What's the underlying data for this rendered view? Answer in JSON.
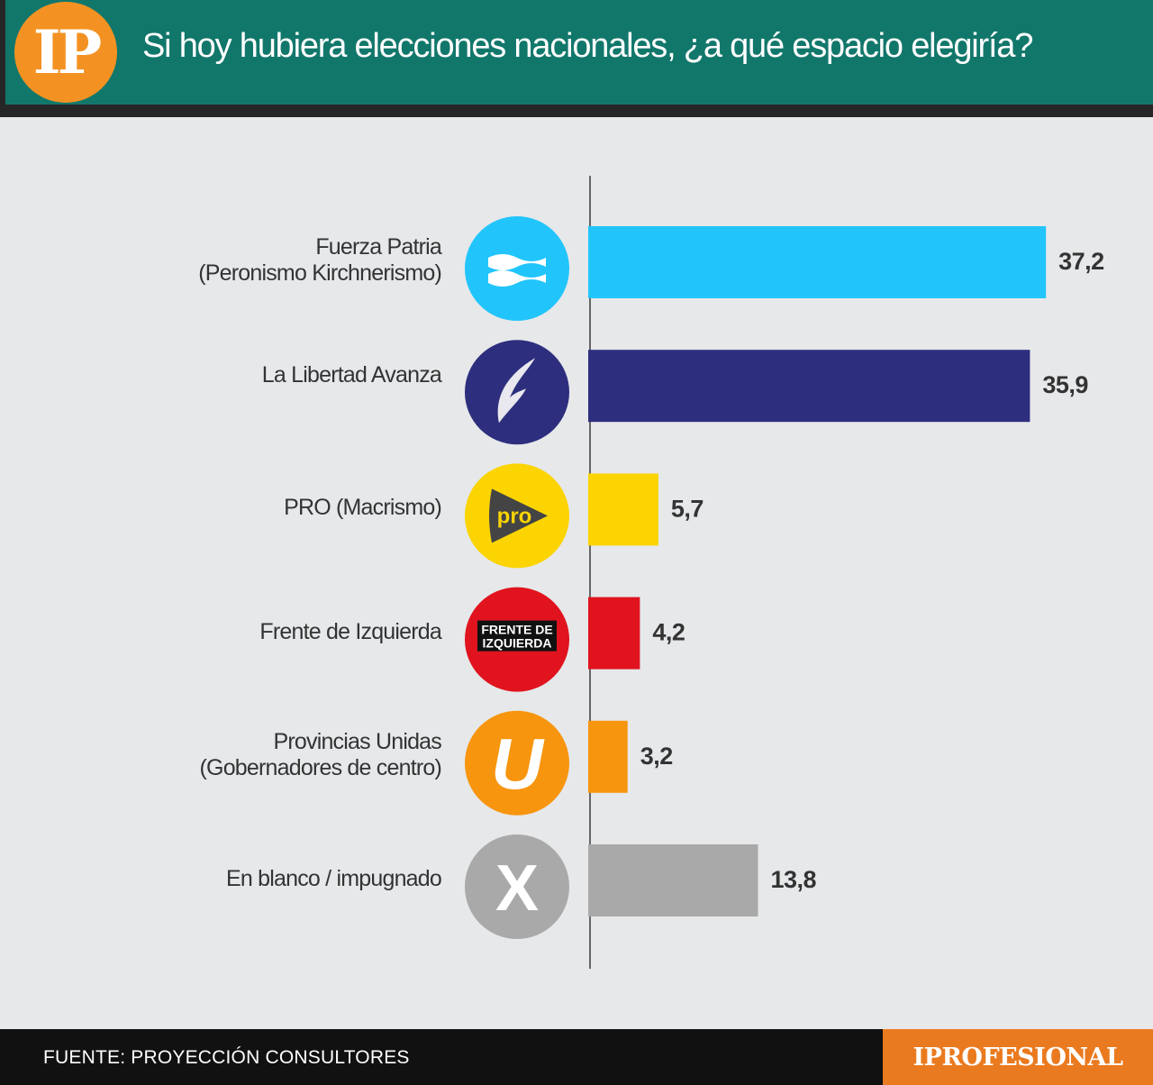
{
  "header": {
    "logo_text": "IP",
    "title": "Si hoy hubiera elecciones nacionales, ¿a qué espacio elegiría?"
  },
  "chart_data": {
    "type": "bar",
    "orientation": "horizontal",
    "title": "Si hoy hubiera elecciones nacionales, ¿a qué espacio elegiría?",
    "categories": [
      "Fuerza Patria (Peronismo Kirchnerismo)",
      "La Libertad Avanza",
      "PRO (Macrismo)",
      "Frente de Izquierda",
      "Provincias Unidas (Gobernadores de centro)",
      "En blanco / impugnado"
    ],
    "values": [
      37.2,
      35.9,
      5.7,
      4.2,
      3.2,
      13.8
    ],
    "xlim": [
      0,
      40
    ],
    "grid": false,
    "bars": [
      {
        "label_lines": [
          "Fuerza Patria",
          "(Peronismo Kirchnerismo)"
        ],
        "value": 37.2,
        "value_label": "37,2",
        "color": "#22c5fb",
        "icon": "equal-waves-icon",
        "icon_color": "#22c5fb"
      },
      {
        "label_lines": [
          "La Libertad Avanza"
        ],
        "value": 35.9,
        "value_label": "35,9",
        "color": "#2e2e7e",
        "icon": "lion-flame-icon",
        "icon_color": "#2e2e7e"
      },
      {
        "label_lines": [
          "PRO (Macrismo)"
        ],
        "value": 5.7,
        "value_label": "5,7",
        "color": "#fbd402",
        "icon": "pro-play-icon",
        "icon_color": "#fbd402",
        "icon_text": "pro"
      },
      {
        "label_lines": [
          "Frente de Izquierda"
        ],
        "value": 4.2,
        "value_label": "4,2",
        "color": "#e0131e",
        "icon": "frente-izquierda-icon",
        "icon_color": "#e0131e",
        "icon_text": [
          "FRENTE DE",
          "IZQUIERDA"
        ]
      },
      {
        "label_lines": [
          "Provincias Unidas",
          "(Gobernadores de centro)"
        ],
        "value": 3.2,
        "value_label": "3,2",
        "color": "#f7950f",
        "icon": "letter-u-icon",
        "icon_color": "#f7950f",
        "icon_text": "U"
      },
      {
        "label_lines": [
          "En blanco / impugnado"
        ],
        "value": 13.8,
        "value_label": "13,8",
        "color": "#a9a9a9",
        "icon": "x-mark-icon",
        "icon_color": "#a9a9a9",
        "icon_text": "X"
      }
    ]
  },
  "footer": {
    "source": "FUENTE: PROYECCIÓN CONSULTORES",
    "brand": "IPROFESIONAL"
  }
}
